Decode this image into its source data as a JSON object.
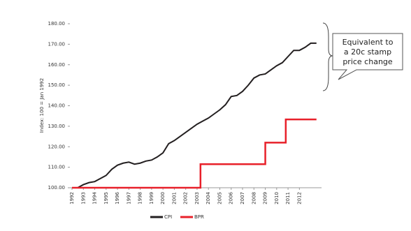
{
  "chart_data": {
    "type": "line",
    "y_label": "Index: 100 = Jan 1992",
    "xlim": [
      1992,
      2013.7
    ],
    "ylim": [
      100,
      180
    ],
    "xticks": [
      1992,
      1993,
      1994,
      1995,
      1996,
      1997,
      1998,
      1999,
      2000,
      2001,
      2002,
      2003,
      2004,
      2005,
      2006,
      2007,
      2008,
      2009,
      2010,
      2011,
      2012
    ],
    "yticks": [
      {
        "value": 100,
        "label": "100.00"
      },
      {
        "value": 110,
        "label": "110.00"
      },
      {
        "value": 120,
        "label": "120.00"
      },
      {
        "value": 130,
        "label": "130.00"
      },
      {
        "value": 140,
        "label": "140.00"
      },
      {
        "value": 150,
        "label": "150.00"
      },
      {
        "value": 160,
        "label": "160.00"
      },
      {
        "value": 170,
        "label": "170.00"
      },
      {
        "value": 180,
        "label": "180.00"
      }
    ],
    "series": [
      {
        "name": "CPI",
        "color": "#231f20",
        "x": [
          1992,
          1992.5,
          1993,
          1993.5,
          1994,
          1994.5,
          1995,
          1995.5,
          1996,
          1996.5,
          1997,
          1997.5,
          1998,
          1998.5,
          1999,
          1999.5,
          2000,
          2000.5,
          2001,
          2001.5,
          2002,
          2002.5,
          2003,
          2003.5,
          2004,
          2004.5,
          2005,
          2005.5,
          2006,
          2006.5,
          2007,
          2007.5,
          2008,
          2008.5,
          2009,
          2009.5,
          2010,
          2010.5,
          2011,
          2011.5,
          2012,
          2012.5,
          2013,
          2013.5
        ],
        "values": [
          100,
          100,
          101.5,
          102.5,
          103,
          104.5,
          106,
          109,
          111,
          112,
          112.5,
          111.5,
          112,
          113,
          113.5,
          115,
          117,
          121.5,
          123,
          125,
          127,
          129,
          131,
          132.5,
          134,
          136,
          138,
          140.5,
          144.5,
          145,
          147,
          150,
          153.5,
          155,
          155.5,
          157.5,
          159.5,
          161,
          164,
          167,
          167,
          168.5,
          170.5,
          170.5
        ]
      },
      {
        "name": "BPR",
        "color": "#e8202a",
        "x": [
          1992,
          2003.3,
          2003.3,
          2009,
          2009,
          2010.8,
          2010.8,
          2013.5
        ],
        "values": [
          100,
          100,
          111.5,
          111.5,
          122,
          122,
          133.3,
          133.3
        ]
      }
    ],
    "annotation": [
      "Equivalent to",
      "a 20c stamp",
      "price change"
    ]
  }
}
